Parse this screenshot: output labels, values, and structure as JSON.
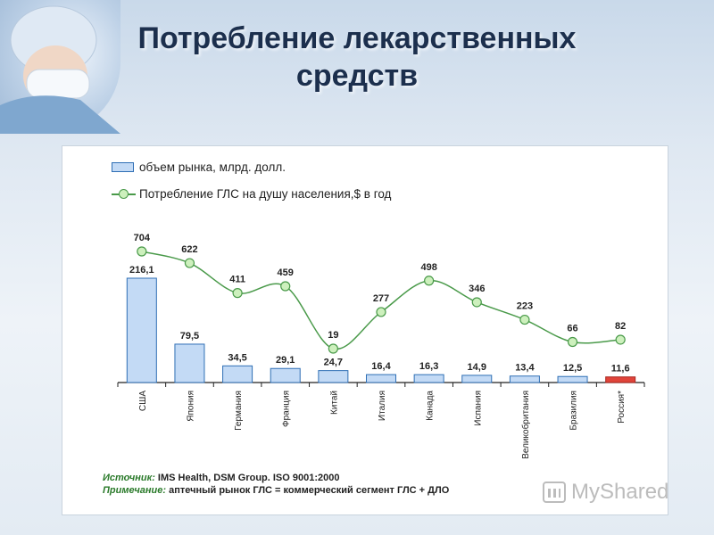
{
  "slide": {
    "title_line1": "Потребление лекарственных",
    "title_line2": "средств"
  },
  "chart_data": {
    "type": "bar",
    "categories": [
      "США",
      "Япония",
      "Германия",
      "Франция",
      "Китай",
      "Италия",
      "Канада",
      "Испания",
      "Великобритания",
      "Бразилия",
      "Россия*"
    ],
    "series": [
      {
        "name": "объем рынка, млрд. долл.",
        "type": "bar",
        "values": [
          216.1,
          79.5,
          34.5,
          29.1,
          24.7,
          16.4,
          16.3,
          14.9,
          13.4,
          12.5,
          11.6
        ],
        "labels": [
          "216,1",
          "79,5",
          "34,5",
          "29,1",
          "24,7",
          "16,4",
          "16,3",
          "14,9",
          "13,4",
          "12,5",
          "11,6"
        ],
        "color": "#c3daf5",
        "border_color": "#2f6fb5",
        "highlight_index": 10,
        "highlight_color": "#e0443a"
      },
      {
        "name": "Потребление ГЛС на душу населения,$ в год",
        "type": "line",
        "values": [
          704,
          622,
          411,
          459,
          19,
          277,
          498,
          346,
          223,
          66,
          82
        ],
        "labels": [
          "704",
          "622",
          "411",
          "459",
          "19",
          "277",
          "498",
          "346",
          "223",
          "66",
          "82"
        ],
        "color": "#4a9a4a",
        "marker_fill": "#cdf0bd"
      }
    ],
    "legend_position": "top-left",
    "grid": false
  },
  "footnote": {
    "source_label": "Источник:",
    "source_text": "IMS Health, DSM Group. ISO 9001:2000",
    "note_label": "Примечание:",
    "note_text": "аптечный рынок ГЛС = коммерческий сегмент ГЛС + ДЛО"
  },
  "watermark": {
    "text": "MyShared",
    "icon": "presentation-chart-icon"
  }
}
